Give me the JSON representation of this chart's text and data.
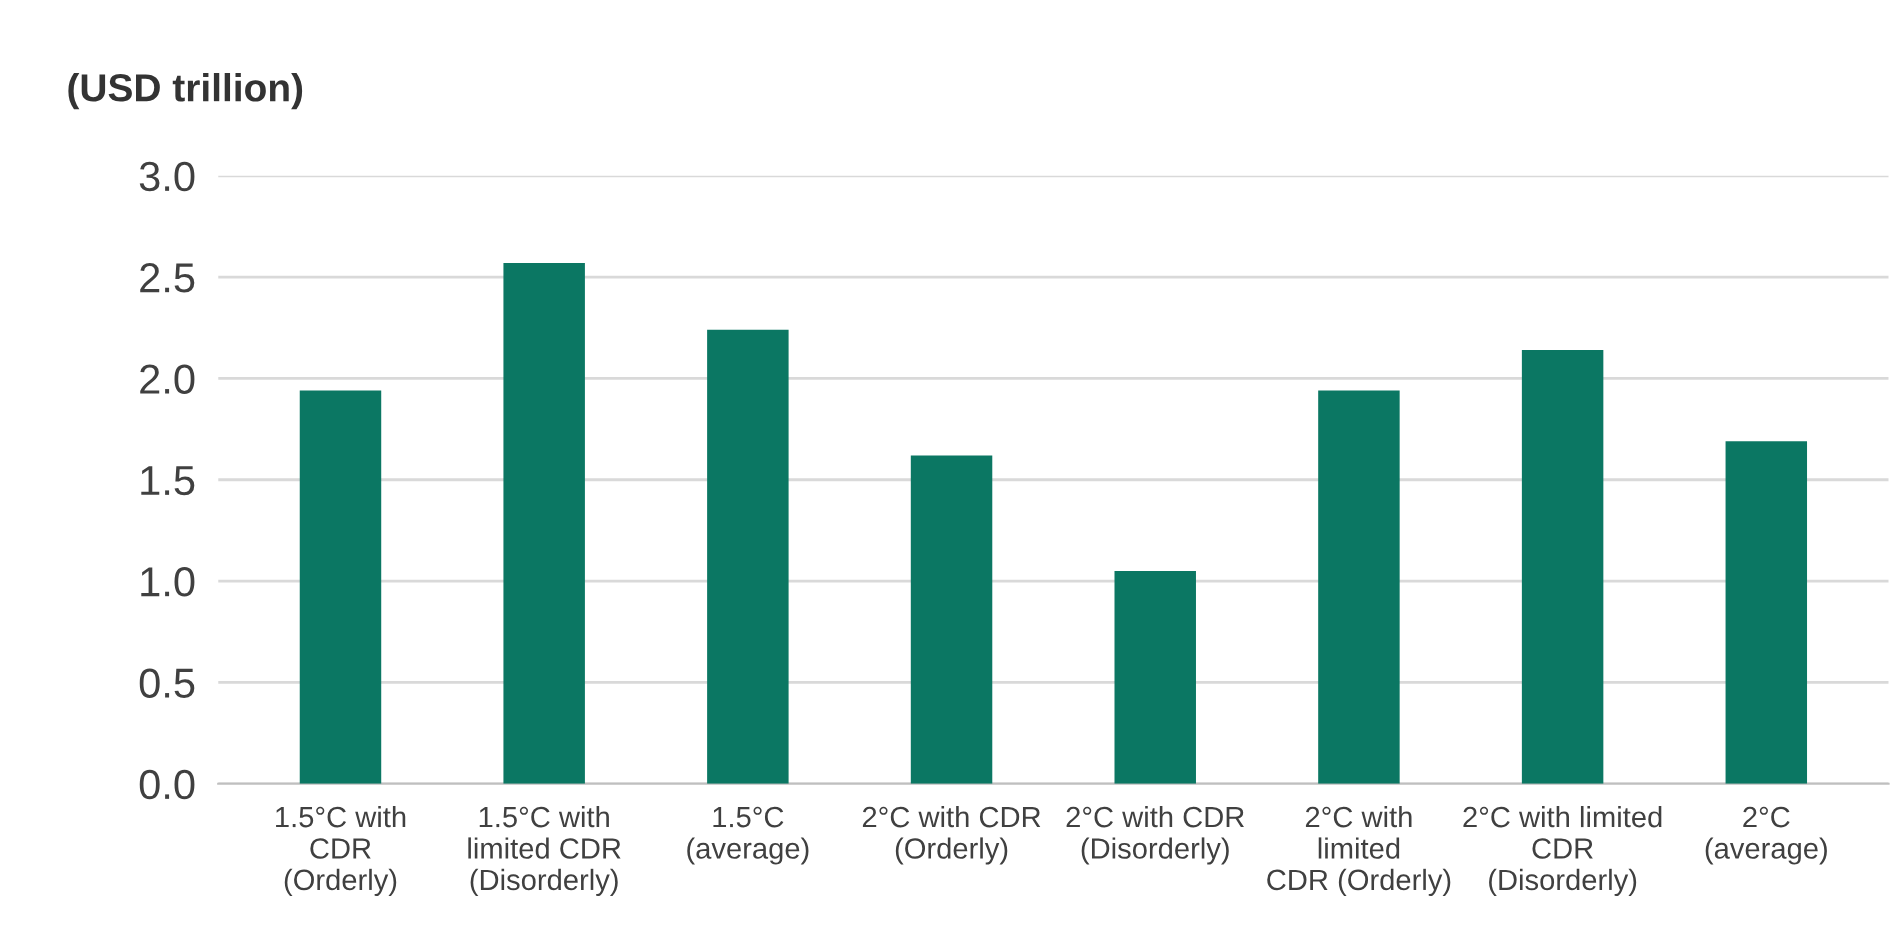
{
  "chart_data": {
    "type": "bar",
    "title": "(USD trillion)",
    "categories": [
      "1.5°C with\nCDR\n(Orderly)",
      "1.5°C with\nlimited CDR\n(Disorderly)",
      "1.5°C\n(average)",
      "2°C with CDR\n(Orderly)",
      "2°C with CDR\n(Disorderly)",
      "2°C with\nlimited\nCDR (Orderly)",
      "2°C with limited\nCDR\n(Disorderly)",
      "2°C\n(average)"
    ],
    "values": [
      1.94,
      2.57,
      2.24,
      1.62,
      1.05,
      1.94,
      2.14,
      1.69
    ],
    "color": "#0b7763",
    "ylim": [
      0,
      3
    ],
    "yticks": [
      {
        "value": 0,
        "label": "0.0"
      },
      {
        "value": 0.5,
        "label": "0.5"
      },
      {
        "value": 1,
        "label": "1.0"
      },
      {
        "value": 1.5,
        "label": "1.5"
      },
      {
        "value": 2,
        "label": "2.0"
      },
      {
        "value": 2.5,
        "label": "2.5"
      },
      {
        "value": 3,
        "label": "3.0"
      }
    ],
    "grid": "y"
  }
}
